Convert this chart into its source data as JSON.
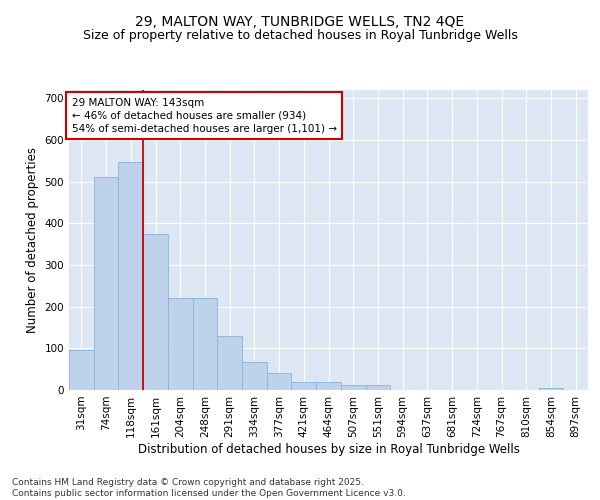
{
  "title1": "29, MALTON WAY, TUNBRIDGE WELLS, TN2 4QE",
  "title2": "Size of property relative to detached houses in Royal Tunbridge Wells",
  "xlabel": "Distribution of detached houses by size in Royal Tunbridge Wells",
  "ylabel": "Number of detached properties",
  "categories": [
    "31sqm",
    "74sqm",
    "118sqm",
    "161sqm",
    "204sqm",
    "248sqm",
    "291sqm",
    "334sqm",
    "377sqm",
    "421sqm",
    "464sqm",
    "507sqm",
    "551sqm",
    "594sqm",
    "637sqm",
    "681sqm",
    "724sqm",
    "767sqm",
    "810sqm",
    "854sqm",
    "897sqm"
  ],
  "values": [
    97,
    512,
    547,
    375,
    222,
    222,
    130,
    67,
    40,
    20,
    20,
    12,
    12,
    0,
    0,
    0,
    0,
    0,
    0,
    5,
    0
  ],
  "bar_color": "#bed3eb",
  "bar_edge_color": "#8ab4d8",
  "vline_color": "#cc0000",
  "annotation_text": "29 MALTON WAY: 143sqm\n← 46% of detached houses are smaller (934)\n54% of semi-detached houses are larger (1,101) →",
  "annotation_box_color": "#ffffff",
  "annotation_box_edge": "#cc0000",
  "ylim": [
    0,
    720
  ],
  "yticks": [
    0,
    100,
    200,
    300,
    400,
    500,
    600,
    700
  ],
  "background_color": "#dde6f3",
  "footer": "Contains HM Land Registry data © Crown copyright and database right 2025.\nContains public sector information licensed under the Open Government Licence v3.0.",
  "title1_fontsize": 10,
  "title2_fontsize": 9,
  "xlabel_fontsize": 8.5,
  "ylabel_fontsize": 8.5,
  "tick_fontsize": 7.5,
  "footer_fontsize": 6.5
}
